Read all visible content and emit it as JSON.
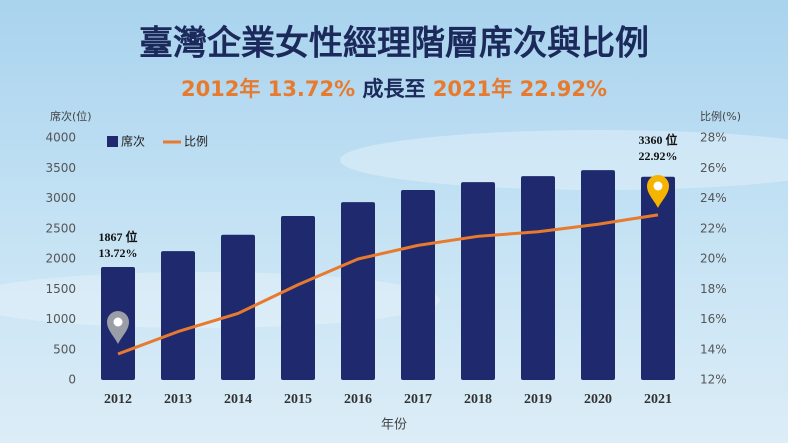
{
  "chart_data": {
    "type": "bar",
    "title": "臺灣企業女性經理階層席次與比例",
    "subtitle": [
      "2012年 13.72%",
      "成長至",
      "2021年 22.92%"
    ],
    "x_label": "年份",
    "y_label": "席次(位)",
    "y2_label": "比例(%)",
    "categories": [
      "2012",
      "2013",
      "2014",
      "2015",
      "2016",
      "2017",
      "2018",
      "2019",
      "2020",
      "2021"
    ],
    "series": [
      {
        "name": "席次",
        "type": "bar",
        "color": "#1f2a6e",
        "values": [
          1867,
          2130,
          2400,
          2710,
          2940,
          3140,
          3270,
          3370,
          3470,
          3360
        ],
        "value_labels": [
          "1867 位",
          null,
          null,
          null,
          null,
          null,
          null,
          null,
          null,
          "3360 位"
        ]
      },
      {
        "name": "比例",
        "type": "line",
        "axis": "y2",
        "color": "#e87a2e",
        "values": [
          13.72,
          15.2,
          16.4,
          18.3,
          20.0,
          20.9,
          21.5,
          21.8,
          22.3,
          22.92
        ],
        "value_labels": [
          "13.72%",
          null,
          null,
          null,
          null,
          null,
          null,
          null,
          null,
          "22.92%"
        ]
      }
    ],
    "ylim": [
      0,
      4000
    ],
    "yticks": [
      0,
      500,
      1000,
      1500,
      2000,
      2500,
      3000,
      3500,
      4000
    ],
    "y2lim": [
      12,
      28
    ],
    "y2ticks": [
      {
        "value": 12,
        "label": "12%"
      },
      {
        "value": 14,
        "label": "14%"
      },
      {
        "value": 16,
        "label": "16%"
      },
      {
        "value": 18,
        "label": "18%"
      },
      {
        "value": 20,
        "label": "20%"
      },
      {
        "value": 22,
        "label": "22%"
      },
      {
        "value": 24,
        "label": "24%"
      },
      {
        "value": 26,
        "label": "26%"
      },
      {
        "value": 28,
        "label": "28%"
      }
    ],
    "grid": false
  }
}
